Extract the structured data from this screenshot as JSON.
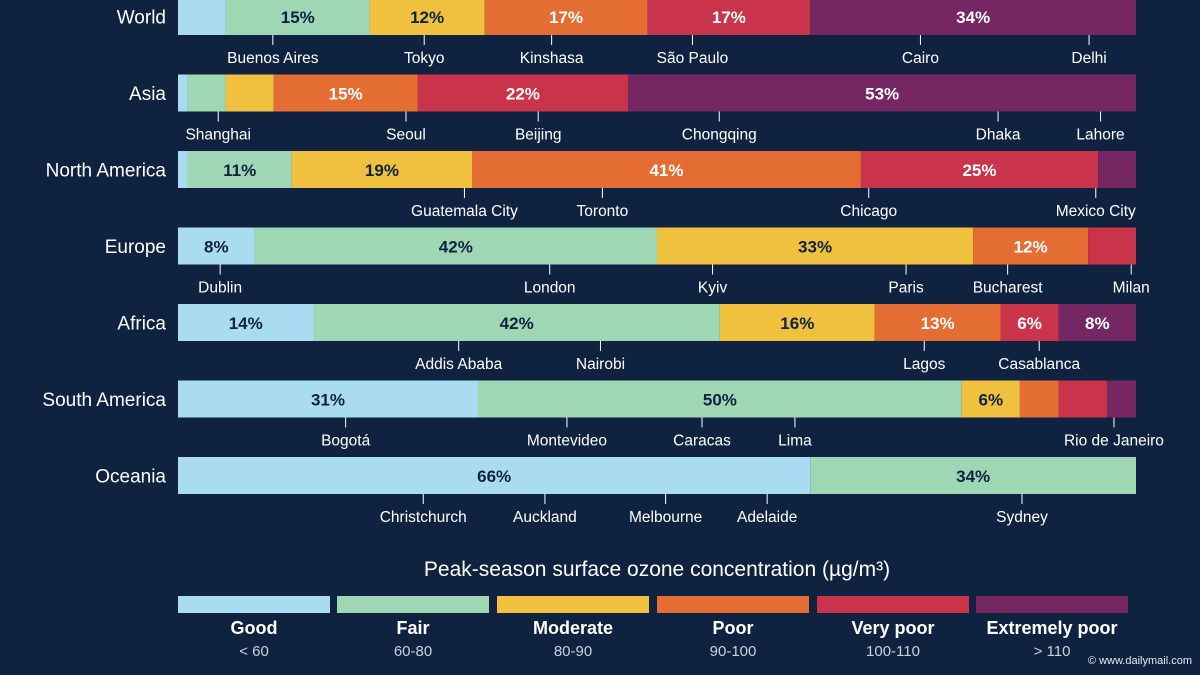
{
  "chart_data": {
    "type": "bar",
    "stacked": "100%",
    "orientation": "horizontal",
    "legend_title": "Peak-season surface ozone concentration (µg/m³)",
    "categories_legend": [
      {
        "name": "Good",
        "range": "< 60",
        "color": "#a9dcf0"
      },
      {
        "name": "Fair",
        "range": "60-80",
        "color": "#9fd6b4"
      },
      {
        "name": "Moderate",
        "range": "80-90",
        "color": "#f0c03f"
      },
      {
        "name": "Poor",
        "range": "90-100",
        "color": "#e36d33"
      },
      {
        "name": "Very poor",
        "range": "100-110",
        "color": "#c9344a"
      },
      {
        "name": "Extremely poor",
        "range": "> 110",
        "color": "#742762"
      }
    ],
    "regions": [
      {
        "name": "World",
        "values": [
          5,
          15,
          12,
          17,
          17,
          34
        ],
        "labels": [
          "",
          "15%",
          "12%",
          "17%",
          "17%",
          "34%"
        ],
        "cities": [
          {
            "name": "Buenos Aires",
            "position": 9.9
          },
          {
            "name": "Tokyo",
            "position": 25.7
          },
          {
            "name": "Kinshasa",
            "position": 39.0
          },
          {
            "name": "São Paulo",
            "position": 53.7
          },
          {
            "name": "Cairo",
            "position": 77.5
          },
          {
            "name": "Delhi",
            "position": 95.1
          }
        ]
      },
      {
        "name": "Asia",
        "values": [
          1,
          4,
          5,
          15,
          22,
          53
        ],
        "labels": [
          "",
          "",
          "",
          "15%",
          "22%",
          "53%"
        ],
        "cities": [
          {
            "name": "Shanghai",
            "position": 4.2
          },
          {
            "name": "Seoul",
            "position": 23.8
          },
          {
            "name": "Beijing",
            "position": 37.6
          },
          {
            "name": "Chongqing",
            "position": 56.5
          },
          {
            "name": "Dhaka",
            "position": 85.6
          },
          {
            "name": "Lahore",
            "position": 96.3
          }
        ]
      },
      {
        "name": "North America",
        "values": [
          1,
          11,
          19,
          41,
          25,
          4
        ],
        "labels": [
          "",
          "11%",
          "19%",
          "41%",
          "25%",
          ""
        ],
        "cities": [
          {
            "name": "Guatemala City",
            "position": 29.9
          },
          {
            "name": "Toronto",
            "position": 44.3
          },
          {
            "name": "Chicago",
            "position": 72.1
          },
          {
            "name": "Mexico City",
            "position": 95.8
          }
        ]
      },
      {
        "name": "Europe",
        "values": [
          8,
          42,
          33,
          12,
          5,
          0
        ],
        "labels": [
          "8%",
          "42%",
          "33%",
          "12%",
          "",
          ""
        ],
        "cities": [
          {
            "name": "Dublin",
            "position": 4.4
          },
          {
            "name": "London",
            "position": 38.8
          },
          {
            "name": "Kyiv",
            "position": 55.8
          },
          {
            "name": "Paris",
            "position": 76.0
          },
          {
            "name": "Bucharest",
            "position": 86.6
          },
          {
            "name": "Milan",
            "position": 99.5
          }
        ]
      },
      {
        "name": "Africa",
        "values": [
          14,
          42,
          16,
          13,
          6,
          8
        ],
        "labels": [
          "14%",
          "42%",
          "16%",
          "13%",
          "6%",
          "8%"
        ],
        "cities": [
          {
            "name": "Addis Ababa",
            "position": 29.3
          },
          {
            "name": "Nairobi",
            "position": 44.1
          },
          {
            "name": "Lagos",
            "position": 77.9
          },
          {
            "name": "Casablanca",
            "position": 89.9
          }
        ]
      },
      {
        "name": "South America",
        "values": [
          31,
          50,
          6,
          4,
          5,
          3
        ],
        "labels": [
          "31%",
          "50%",
          "6%",
          "",
          "",
          ""
        ],
        "cities": [
          {
            "name": "Bogotá",
            "position": 17.5
          },
          {
            "name": "Montevideo",
            "position": 40.6
          },
          {
            "name": "Caracas",
            "position": 54.7
          },
          {
            "name": "Lima",
            "position": 64.4
          },
          {
            "name": "Rio de Janeiro",
            "position": 97.7
          }
        ]
      },
      {
        "name": "Oceania",
        "values": [
          66,
          34,
          0,
          0,
          0,
          0
        ],
        "labels": [
          "66%",
          "34%",
          "",
          "",
          "",
          ""
        ],
        "cities": [
          {
            "name": "Christchurch",
            "position": 25.6
          },
          {
            "name": "Auckland",
            "position": 38.3
          },
          {
            "name": "Melbourne",
            "position": 50.9
          },
          {
            "name": "Adelaide",
            "position": 61.5
          },
          {
            "name": "Sydney",
            "position": 88.1
          }
        ]
      }
    ]
  },
  "credit": "© www.dailymail.com"
}
